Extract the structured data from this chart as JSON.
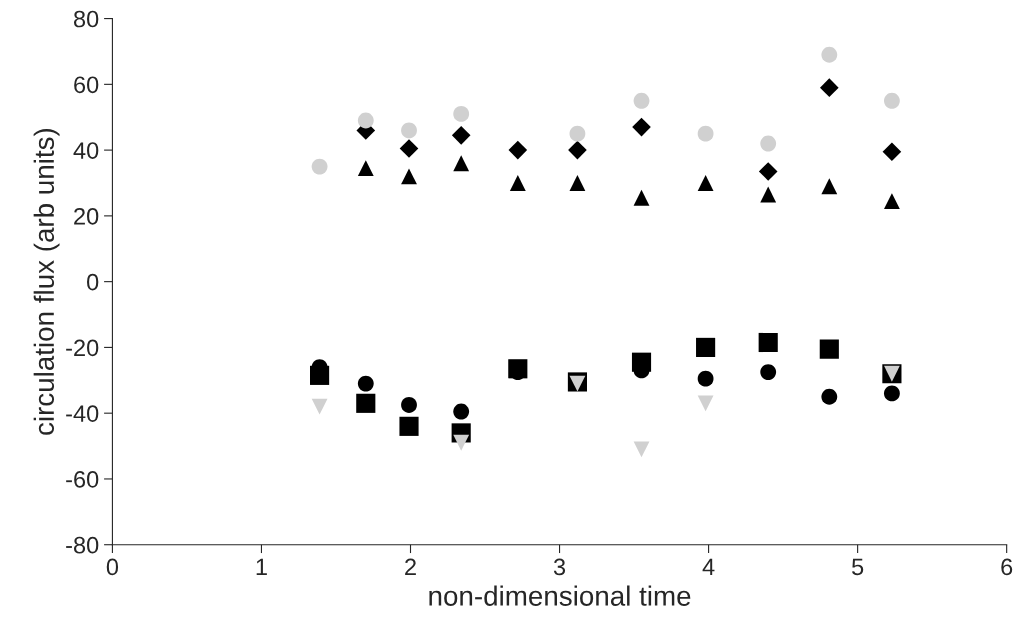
{
  "chart_data": {
    "type": "scatter",
    "xlabel": "non-dimensional time",
    "ylabel": "circulation flux (arb units)",
    "x": [
      1.39,
      1.7,
      1.99,
      2.34,
      2.72,
      3.12,
      3.55,
      3.98,
      4.4,
      4.81,
      5.23
    ],
    "series": [
      {
        "color": "#000000",
        "marker": "diamond",
        "values": [
          null,
          46,
          40.5,
          44.5,
          40,
          40,
          47,
          null,
          33.5,
          59,
          39.5
        ]
      },
      {
        "color": "#000000",
        "marker": "triangle",
        "values": [
          null,
          34.5,
          32,
          36,
          30,
          30,
          25.5,
          30,
          26.5,
          29,
          24.5
        ]
      },
      {
        "color": "#d0d0d0",
        "marker": "circle",
        "values": [
          35,
          49,
          46,
          51,
          null,
          45,
          55,
          45,
          42,
          69,
          55
        ]
      },
      {
        "color": "#000000",
        "marker": "square",
        "values": [
          -28.5,
          -37,
          -44,
          -46,
          -26.5,
          -30.5,
          -24.5,
          -20,
          -18.5,
          -20.5,
          -28
        ]
      },
      {
        "color": "#000000",
        "marker": "circle",
        "values": [
          -26,
          -31,
          -37.5,
          -39.5,
          -27.5,
          null,
          -27,
          -29.5,
          -27.5,
          -35,
          -34
        ]
      },
      {
        "color": "#d0d0d0",
        "marker": "triangle_down",
        "values": [
          -38,
          null,
          null,
          -49,
          null,
          -31,
          -51,
          -37,
          null,
          null,
          -28
        ]
      }
    ],
    "xlim": [
      0,
      6
    ],
    "xticks": [
      0,
      1,
      2,
      3,
      4,
      5,
      6
    ],
    "ylim": [
      -80,
      80
    ],
    "yticks": [
      -80,
      -60,
      -40,
      -20,
      0,
      20,
      40,
      60,
      80
    ],
    "grid": false,
    "legend": false
  }
}
